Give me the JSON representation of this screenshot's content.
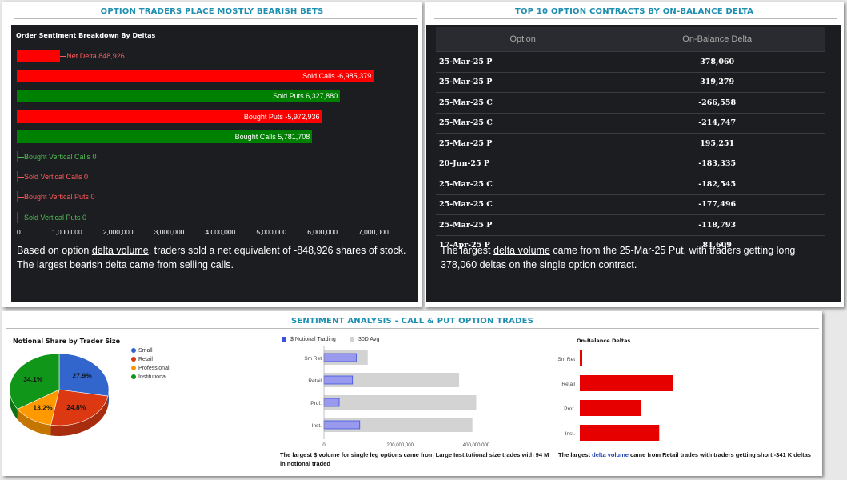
{
  "panel1": {
    "title": "OPTION TRADERS PLACE MOSTLY BEARISH BETS",
    "subtitle": "Order Sentiment Breakdown By Deltas",
    "paragraph": {
      "pre": "Based on option ",
      "link": "delta volume",
      "post": ", traders sold a net equivalent of -848,926 shares of stock. The largest bearish delta came from selling calls."
    }
  },
  "panel2": {
    "title": "TOP 10 OPTION CONTRACTS BY ON-BALANCE DELTA",
    "columns": [
      "Option",
      "On-Balance Delta"
    ],
    "rows": [
      {
        "option": "25-Mar-25 P",
        "delta": "378,060"
      },
      {
        "option": "25-Mar-25 P",
        "delta": "319,279"
      },
      {
        "option": "25-Mar-25 C",
        "delta": "-266,558"
      },
      {
        "option": "25-Mar-25 C",
        "delta": "-214,747"
      },
      {
        "option": "25-Mar-25 P",
        "delta": "195,251"
      },
      {
        "option": "20-Jun-25 P",
        "delta": "-183,335"
      },
      {
        "option": "25-Mar-25 C",
        "delta": "-182,545"
      },
      {
        "option": "25-Mar-25 C",
        "delta": "-177,496"
      },
      {
        "option": "25-Mar-25 P",
        "delta": "-118,793"
      },
      {
        "option": "17-Apr-25 P",
        "delta": "81,609"
      }
    ],
    "paragraph": {
      "pre": "The largest ",
      "link": "delta volume",
      "post": " came from the 25-Mar-25 Put, with traders getting long 378,060 deltas on the single option contract."
    }
  },
  "panel3": {
    "title": "SENTIMENT ANALYSIS - CALL & PUT OPTION TRADES",
    "notional_caption": "The largest $ volume for single leg options came from Large Institutional size trades with 94 M in notional traded",
    "obd_caption": {
      "pre": "The largest ",
      "link": "delta volume",
      "post": " came from Retail trades with traders getting short -341 K deltas"
    }
  },
  "colors": {
    "title_blue": "#1e8fb0",
    "red": "#ff0000",
    "green": "#008000",
    "pie_blue": "#3366cc",
    "pie_red": "#dc3912",
    "pie_orange": "#ff9900",
    "pie_green": "#109618",
    "bar_blue": "#9999ee",
    "bar_gray": "#d3d3d3",
    "obd_red": "#e60000"
  },
  "chart_data": [
    {
      "type": "bar",
      "orientation": "horizontal",
      "title": "Order Sentiment Breakdown By Deltas",
      "categories": [
        "Net Delta",
        "Sold Calls",
        "Sold Puts",
        "Bought Puts",
        "Bought Calls",
        "Bought Vertical Calls",
        "Sold Vertical Calls",
        "Bought Vertical Puts",
        "Sold Vertical Puts"
      ],
      "values": [
        848926,
        6985379,
        6327880,
        5972936,
        5781708,
        0,
        0,
        0,
        0
      ],
      "labels": [
        "Net Delta 848,926",
        "Sold Calls -6,985,379",
        "Sold Puts 6,327,880",
        "Bought Puts -5,972,936",
        "Bought Calls 5,781,708",
        "Bought Vertical Calls 0",
        "Sold Vertical Calls 0",
        "Bought Vertical Puts 0",
        "Sold Vertical Puts 0"
      ],
      "sentiment": [
        "bearish",
        "bearish",
        "bullish",
        "bearish",
        "bullish",
        "bullish",
        "bearish",
        "bearish",
        "bullish"
      ],
      "xlim": [
        0,
        7500000
      ],
      "xticks": [
        "0",
        "1,000,000",
        "2,000,000",
        "3,000,000",
        "4,000,000",
        "5,000,000",
        "6,000,000",
        "7,000,000"
      ],
      "grid": false
    },
    {
      "type": "pie",
      "title": "Notional Share by Trader Size",
      "labels": [
        "Small",
        "Retail",
        "Professional",
        "Institutional"
      ],
      "values": [
        27.9,
        24.8,
        13.2,
        34.1
      ],
      "value_labels": [
        "27.9%",
        "24.8%",
        "13.2%",
        "34.1%"
      ],
      "legend": "right"
    },
    {
      "type": "bar",
      "orientation": "horizontal",
      "categories": [
        "Sm Ret",
        "Retail",
        "Prof.",
        "Inst."
      ],
      "series": [
        {
          "name": "$ Notional Trading",
          "values": [
            85000000,
            75000000,
            40000000,
            94000000
          ]
        },
        {
          "name": "30D Avg",
          "values": [
            115000000,
            355000000,
            400000000,
            390000000
          ]
        }
      ],
      "xlim": [
        0,
        420000000
      ],
      "xticks": [
        "0",
        "200,000,000",
        "400,000,000"
      ],
      "legend": "top"
    },
    {
      "type": "bar",
      "orientation": "horizontal",
      "title": "On-Balance Deltas",
      "categories": [
        "Sm Ret",
        "Retail",
        "Prof.",
        "Inst."
      ],
      "values": [
        -8000,
        -341000,
        -225000,
        -290000
      ],
      "grid": false
    }
  ]
}
